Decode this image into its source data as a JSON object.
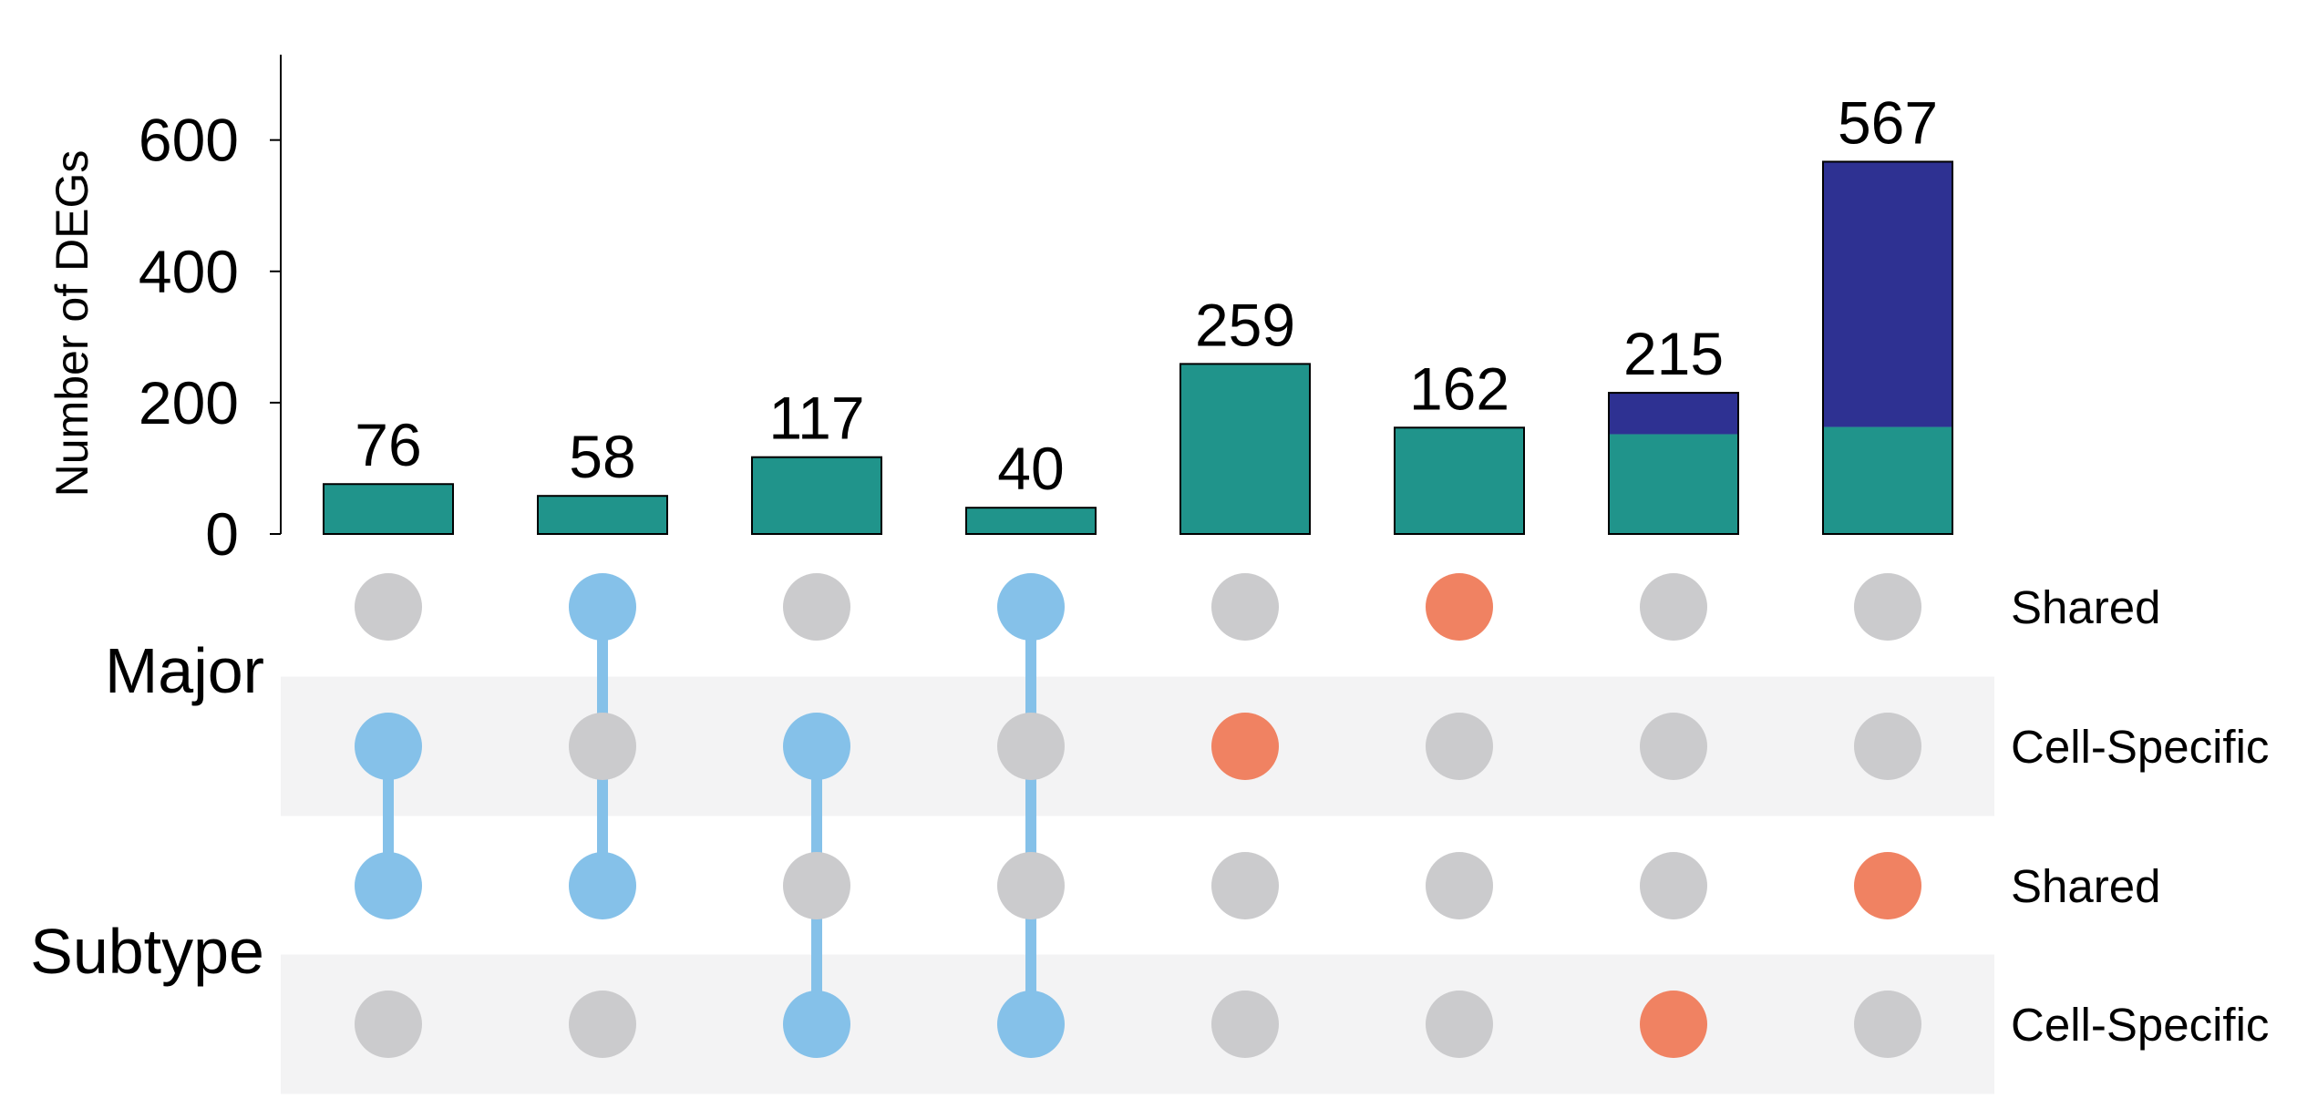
{
  "chart_data": {
    "type": "bar",
    "subtype": "upset",
    "ylabel": "Number of DEGs",
    "ylim": [
      0,
      730
    ],
    "yticks": [
      0,
      200,
      400,
      600
    ],
    "bars": [
      {
        "total": "76",
        "segments": [
          76
        ]
      },
      {
        "total": "58",
        "segments": [
          58
        ]
      },
      {
        "total": "117",
        "segments": [
          117
        ]
      },
      {
        "total": "40",
        "segments": [
          40
        ]
      },
      {
        "total": "259",
        "segments": [
          259
        ]
      },
      {
        "total": "162",
        "segments": [
          162
        ]
      },
      {
        "total": "215",
        "segments": [
          152,
          63
        ]
      },
      {
        "total": "567",
        "segments": [
          163,
          404
        ]
      }
    ],
    "segment_colors": [
      "#20948b",
      "#2e3192"
    ],
    "groups": [
      {
        "label": "Major",
        "sets": [
          0,
          1
        ]
      },
      {
        "label": "Subtype",
        "sets": [
          2,
          3
        ]
      }
    ],
    "sets": [
      {
        "label": "Shared"
      },
      {
        "label": "Cell-Specific"
      },
      {
        "label": "Shared"
      },
      {
        "label": "Cell-Specific"
      }
    ],
    "matrix": [
      [
        0,
        1,
        0,
        1,
        0,
        1,
        0,
        0
      ],
      [
        1,
        0,
        1,
        0,
        1,
        0,
        0,
        0
      ],
      [
        1,
        1,
        0,
        0,
        0,
        0,
        0,
        1
      ],
      [
        0,
        0,
        1,
        1,
        0,
        0,
        1,
        0
      ]
    ],
    "colors": {
      "multi_dot": "#85c1e9",
      "single_dot": "#f08262",
      "empty_dot": "#cbcbcd",
      "stripe": "#f3f3f4"
    }
  }
}
